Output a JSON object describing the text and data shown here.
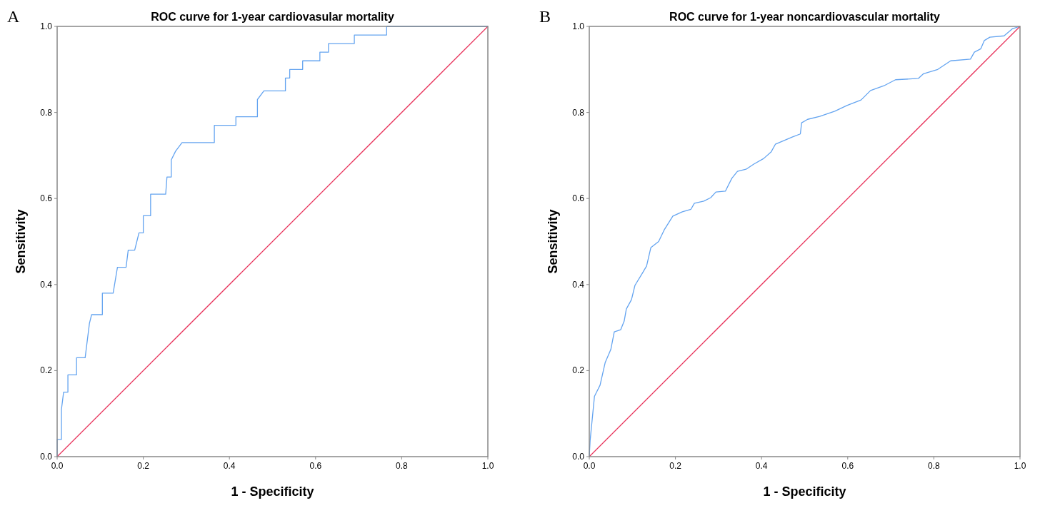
{
  "chart_data": [
    {
      "type": "line",
      "title": "ROC curve for 1-year cardiovasular mortality",
      "xlabel": "1 - Specificity",
      "ylabel": "Sensitivity",
      "annotations": [
        "A"
      ],
      "xlim": [
        0,
        1
      ],
      "ylim": [
        0,
        1
      ],
      "xticks": [
        {
          "value": 0,
          "label": "0.0"
        },
        {
          "value": 0.2,
          "label": "0.2"
        },
        {
          "value": 0.4,
          "label": "0.4"
        },
        {
          "value": 0.6,
          "label": "0.6"
        },
        {
          "value": 0.8,
          "label": "0.8"
        },
        {
          "value": 1,
          "label": "1.0"
        }
      ],
      "yticks": [
        {
          "value": 0,
          "label": "0.0"
        },
        {
          "value": 0.2,
          "label": "0.2"
        },
        {
          "value": 0.4,
          "label": "0.4"
        },
        {
          "value": 0.6,
          "label": "0.6"
        },
        {
          "value": 0.8,
          "label": "0.8"
        },
        {
          "value": 1,
          "label": "1.0"
        }
      ],
      "grid": false,
      "series": [
        {
          "color": "#64a4f0",
          "x": [
            0,
            0,
            0.01,
            0.01,
            0.015,
            0.025,
            0.025,
            0.045,
            0.045,
            0.065,
            0.07,
            0.075,
            0.08,
            0.105,
            0.105,
            0.13,
            0.14,
            0.16,
            0.165,
            0.18,
            0.185,
            0.19,
            0.2,
            0.2,
            0.217,
            0.217,
            0.252,
            0.255,
            0.265,
            0.265,
            0.275,
            0.29,
            0.365,
            0.365,
            0.415,
            0.415,
            0.465,
            0.465,
            0.48,
            0.53,
            0.53,
            0.54,
            0.54,
            0.57,
            0.57,
            0.61,
            0.61,
            0.63,
            0.63,
            0.69,
            0.69,
            0.765,
            0.765,
            1
          ],
          "values": [
            0,
            0.04,
            0.04,
            0.11,
            0.15,
            0.15,
            0.19,
            0.19,
            0.23,
            0.23,
            0.27,
            0.31,
            0.33,
            0.33,
            0.38,
            0.38,
            0.44,
            0.44,
            0.48,
            0.48,
            0.5,
            0.52,
            0.52,
            0.56,
            0.56,
            0.61,
            0.61,
            0.65,
            0.65,
            0.69,
            0.71,
            0.73,
            0.73,
            0.77,
            0.77,
            0.79,
            0.79,
            0.83,
            0.85,
            0.85,
            0.88,
            0.88,
            0.9,
            0.9,
            0.92,
            0.92,
            0.94,
            0.94,
            0.96,
            0.96,
            0.98,
            0.98,
            1,
            1
          ]
        },
        {
          "color": "#e8345c",
          "x": [
            0,
            1
          ],
          "values": [
            0,
            1
          ]
        }
      ]
    },
    {
      "type": "line",
      "title": "ROC curve for 1-year noncardiovascular mortality",
      "xlabel": "1 - Specificity",
      "ylabel": "Sensitivity",
      "annotations": [
        "B"
      ],
      "xlim": [
        0,
        1
      ],
      "ylim": [
        0,
        1
      ],
      "xticks": [
        {
          "value": 0,
          "label": "0.0"
        },
        {
          "value": 0.2,
          "label": "0.2"
        },
        {
          "value": 0.4,
          "label": "0.4"
        },
        {
          "value": 0.6,
          "label": "0.6"
        },
        {
          "value": 0.8,
          "label": "0.8"
        },
        {
          "value": 1,
          "label": "1.0"
        }
      ],
      "yticks": [
        {
          "value": 0,
          "label": "0.0"
        },
        {
          "value": 0.2,
          "label": "0.2"
        },
        {
          "value": 0.4,
          "label": "0.4"
        },
        {
          "value": 0.6,
          "label": "0.6"
        },
        {
          "value": 0.8,
          "label": "0.8"
        },
        {
          "value": 1,
          "label": "1.0"
        }
      ],
      "grid": false,
      "series": [
        {
          "color": "#64a4f0",
          "x": [
            0,
            0.002,
            0.012,
            0.017,
            0.025,
            0.037,
            0.05,
            0.058,
            0.073,
            0.081,
            0.086,
            0.098,
            0.106,
            0.123,
            0.133,
            0.143,
            0.161,
            0.174,
            0.194,
            0.216,
            0.236,
            0.244,
            0.266,
            0.282,
            0.294,
            0.316,
            0.331,
            0.344,
            0.364,
            0.382,
            0.405,
            0.422,
            0.432,
            0.472,
            0.49,
            0.493,
            0.507,
            0.535,
            0.57,
            0.598,
            0.631,
            0.653,
            0.684,
            0.711,
            0.764,
            0.776,
            0.809,
            0.839,
            0.885,
            0.894,
            0.909,
            0.917,
            0.93,
            0.963,
            0.983,
            1
          ],
          "values": [
            0,
            0.038,
            0.14,
            0.15,
            0.166,
            0.219,
            0.249,
            0.29,
            0.295,
            0.315,
            0.343,
            0.365,
            0.398,
            0.426,
            0.443,
            0.486,
            0.5,
            0.527,
            0.559,
            0.569,
            0.575,
            0.589,
            0.594,
            0.602,
            0.615,
            0.617,
            0.647,
            0.663,
            0.668,
            0.68,
            0.693,
            0.708,
            0.726,
            0.743,
            0.75,
            0.776,
            0.784,
            0.791,
            0.803,
            0.816,
            0.829,
            0.851,
            0.862,
            0.876,
            0.879,
            0.89,
            0.9,
            0.92,
            0.924,
            0.94,
            0.948,
            0.967,
            0.975,
            0.978,
            0.995,
            1
          ]
        },
        {
          "color": "#e8345c",
          "x": [
            0,
            1
          ],
          "values": [
            0,
            1
          ]
        }
      ]
    }
  ]
}
